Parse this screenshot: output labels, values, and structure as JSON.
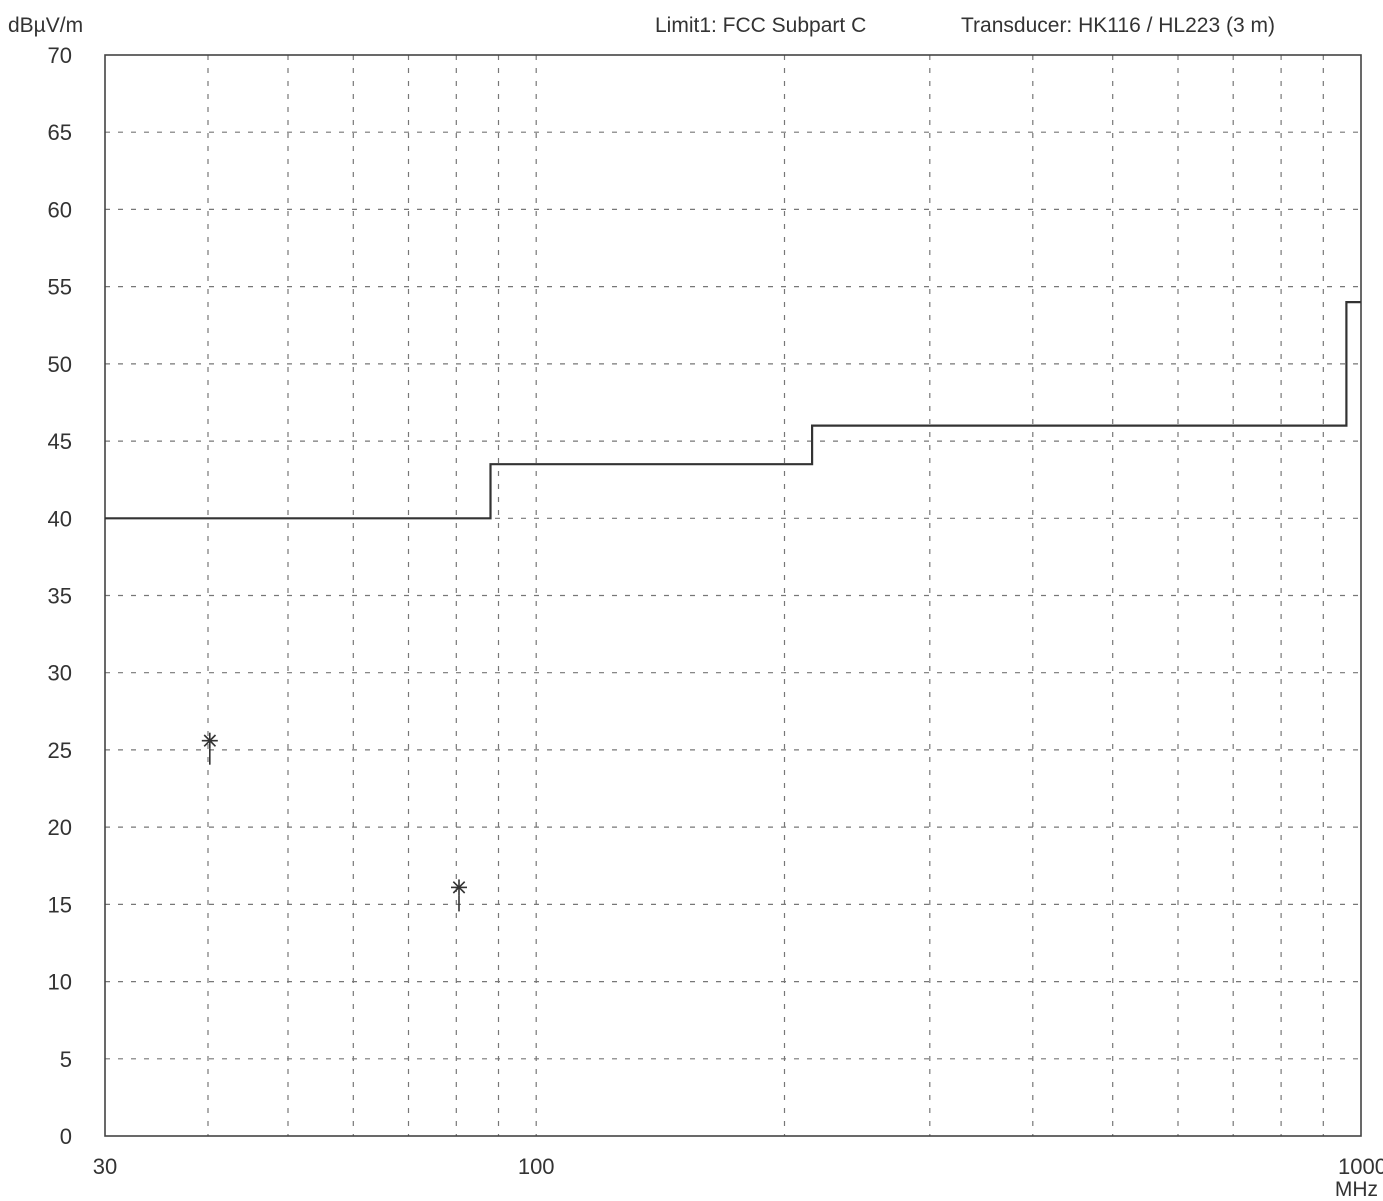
{
  "chart_data": {
    "type": "line",
    "header": {
      "y_unit": "dBµV/m",
      "limit": "Limit1: FCC Subpart C",
      "transducer": "Transducer: HK116 / HL223 (3 m)"
    },
    "x_axis": {
      "scale": "log",
      "range": [
        30,
        1000
      ],
      "tick_labels": [
        "30",
        "100",
        "1000"
      ],
      "tick_values": [
        30,
        100,
        1000
      ],
      "unit": "MHz",
      "grid_values": [
        30,
        40,
        50,
        60,
        70,
        80,
        90,
        100,
        200,
        300,
        400,
        500,
        600,
        700,
        800,
        900,
        1000
      ]
    },
    "y_axis": {
      "range": [
        0,
        70
      ],
      "tick_labels": [
        "0",
        "5",
        "10",
        "15",
        "20",
        "25",
        "30",
        "35",
        "40",
        "45",
        "50",
        "55",
        "60",
        "65",
        "70"
      ],
      "tick_values": [
        0,
        5,
        10,
        15,
        20,
        25,
        30,
        35,
        40,
        45,
        50,
        55,
        60,
        65,
        70
      ]
    },
    "grid": true,
    "series": [
      {
        "name": "",
        "kind": "limit-step",
        "color": "#333333",
        "points": [
          [
            30,
            40
          ],
          [
            88,
            40
          ],
          [
            88,
            43.5
          ],
          [
            216,
            43.5
          ],
          [
            216,
            46
          ],
          [
            960,
            46
          ],
          [
            960,
            54
          ],
          [
            1000,
            54
          ]
        ]
      },
      {
        "name": "",
        "kind": "markers",
        "marker": "asterisk",
        "color": "#333333",
        "points": [
          [
            40.2,
            25.6
          ],
          [
            80.6,
            16.1
          ]
        ]
      }
    ]
  }
}
